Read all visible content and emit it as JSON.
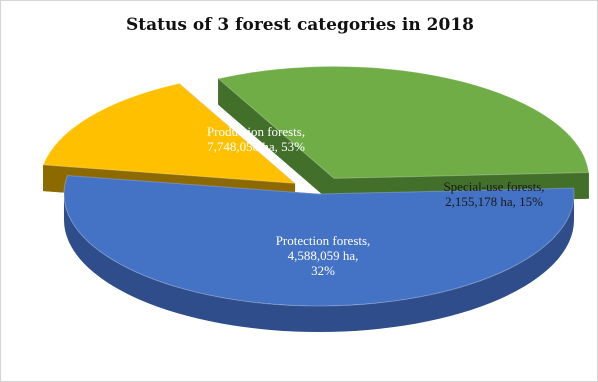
{
  "chart_data": {
    "type": "pie",
    "title": "Status of 3 forest categories in 2018",
    "slices": [
      {
        "name": "Production forests",
        "value": 7748058,
        "percent": 53,
        "color": "#4472C4",
        "side_color": "#2E4D8A",
        "label_lines": [
          "Production forests,",
          "7,748,058 ha, 53%"
        ],
        "label_color": "#ffffff",
        "exploded": false
      },
      {
        "name": "Special-use forests",
        "value": 2155178,
        "percent": 15,
        "color": "#FFC000",
        "side_color": "#8C6A00",
        "label_lines": [
          "Special-use forests,",
          "2,155,178 ha, 15%"
        ],
        "label_color": "#1a1a1a",
        "exploded": true
      },
      {
        "name": "Protection forests",
        "value": 4588059,
        "percent": 32,
        "color": "#70AD47",
        "side_color": "#42702A",
        "label_lines": [
          "Protection forests,",
          "4,588,059 ha,",
          "32%"
        ],
        "label_color": "#ffffff",
        "exploded": true
      }
    ],
    "style": "3d-exploded-pie",
    "legend": "none"
  }
}
